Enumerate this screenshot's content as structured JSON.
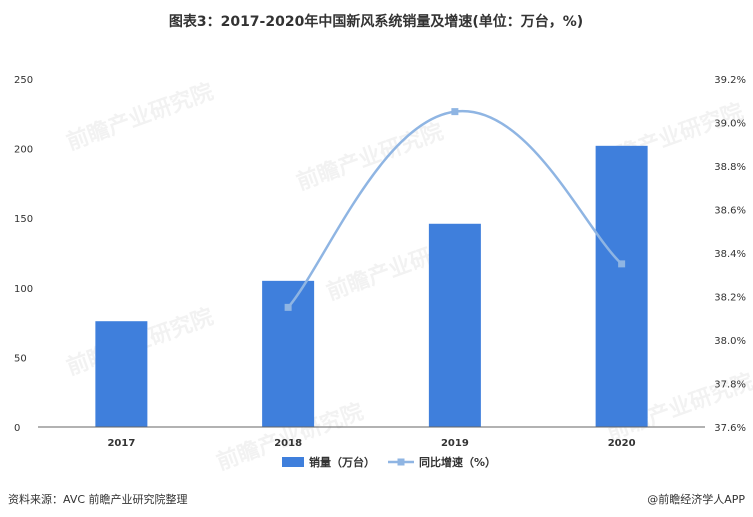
{
  "title": "图表3：2017-2020年中国新风系统销量及增速(单位：万台，%)",
  "source": "资料来源：AVC 前瞻产业研究院整理",
  "credit": "@前瞻经济学人APP",
  "watermark": "前瞻产业研究院",
  "colors": {
    "bar": "#3f7fdc",
    "line": "#8fb5e3",
    "axis": "#666666",
    "text": "#333333"
  },
  "chart_data": {
    "type": "bar+line",
    "categories": [
      "2017",
      "2018",
      "2019",
      "2020"
    ],
    "series": [
      {
        "name": "销量（万台）",
        "type": "bar",
        "axis": "left",
        "values": [
          76,
          105,
          146,
          202
        ]
      },
      {
        "name": "同比增速（%）",
        "type": "line",
        "axis": "right",
        "values": [
          38.15,
          39.05,
          38.35
        ],
        "x": [
          "2018",
          "2019",
          "2020"
        ]
      }
    ],
    "y_left": {
      "range": [
        0,
        250
      ],
      "ticks": [
        0,
        50,
        100,
        150,
        200,
        250
      ]
    },
    "y_right": {
      "range": [
        37.6,
        39.2
      ],
      "ticks": [
        "37.6%",
        "37.8%",
        "38.0%",
        "38.2%",
        "38.4%",
        "38.6%",
        "38.8%",
        "39.0%",
        "39.2%"
      ],
      "tick_values": [
        37.6,
        37.8,
        38.0,
        38.2,
        38.4,
        38.6,
        38.8,
        39.0,
        39.2
      ]
    },
    "legend": "bottom",
    "grid": false
  }
}
